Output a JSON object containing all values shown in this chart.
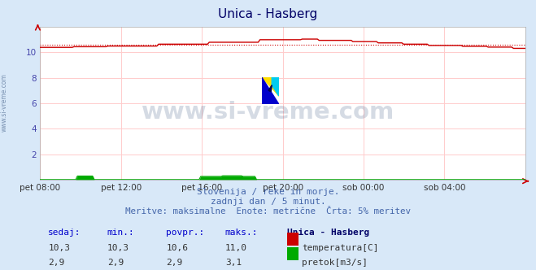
{
  "title": "Unica - Hasberg",
  "bg_color": "#d8e8f8",
  "plot_bg_color": "#ffffff",
  "grid_color": "#ffcccc",
  "x_labels": [
    "pet 08:00",
    "pet 12:00",
    "pet 16:00",
    "pet 20:00",
    "sob 00:00",
    "sob 04:00"
  ],
  "x_ticks_norm": [
    0.0,
    0.1667,
    0.3333,
    0.5,
    0.6667,
    0.8333
  ],
  "ylim": [
    0,
    12
  ],
  "yticks": [
    2,
    4,
    6,
    8,
    10
  ],
  "temp_color": "#cc0000",
  "flow_color": "#00aa00",
  "watermark_text": "www.si-vreme.com",
  "watermark_color": "#1a3a6a",
  "watermark_alpha": 0.18,
  "subtitle1": "Slovenija / reke in morje.",
  "subtitle2": "zadnji dan / 5 minut.",
  "subtitle3": "Meritve: maksimalne  Enote: metrične  Črta: 5% meritev",
  "subtitle_color": "#4466aa",
  "stat_label_color": "#0000cc",
  "station_name_color": "#000066",
  "temp_sedaj": "10,3",
  "temp_min": "10,3",
  "temp_povpr": "10,6",
  "temp_maks": "11,0",
  "flow_sedaj": "2,9",
  "flow_min": "2,9",
  "flow_povpr": "2,9",
  "flow_maks": "3,1"
}
